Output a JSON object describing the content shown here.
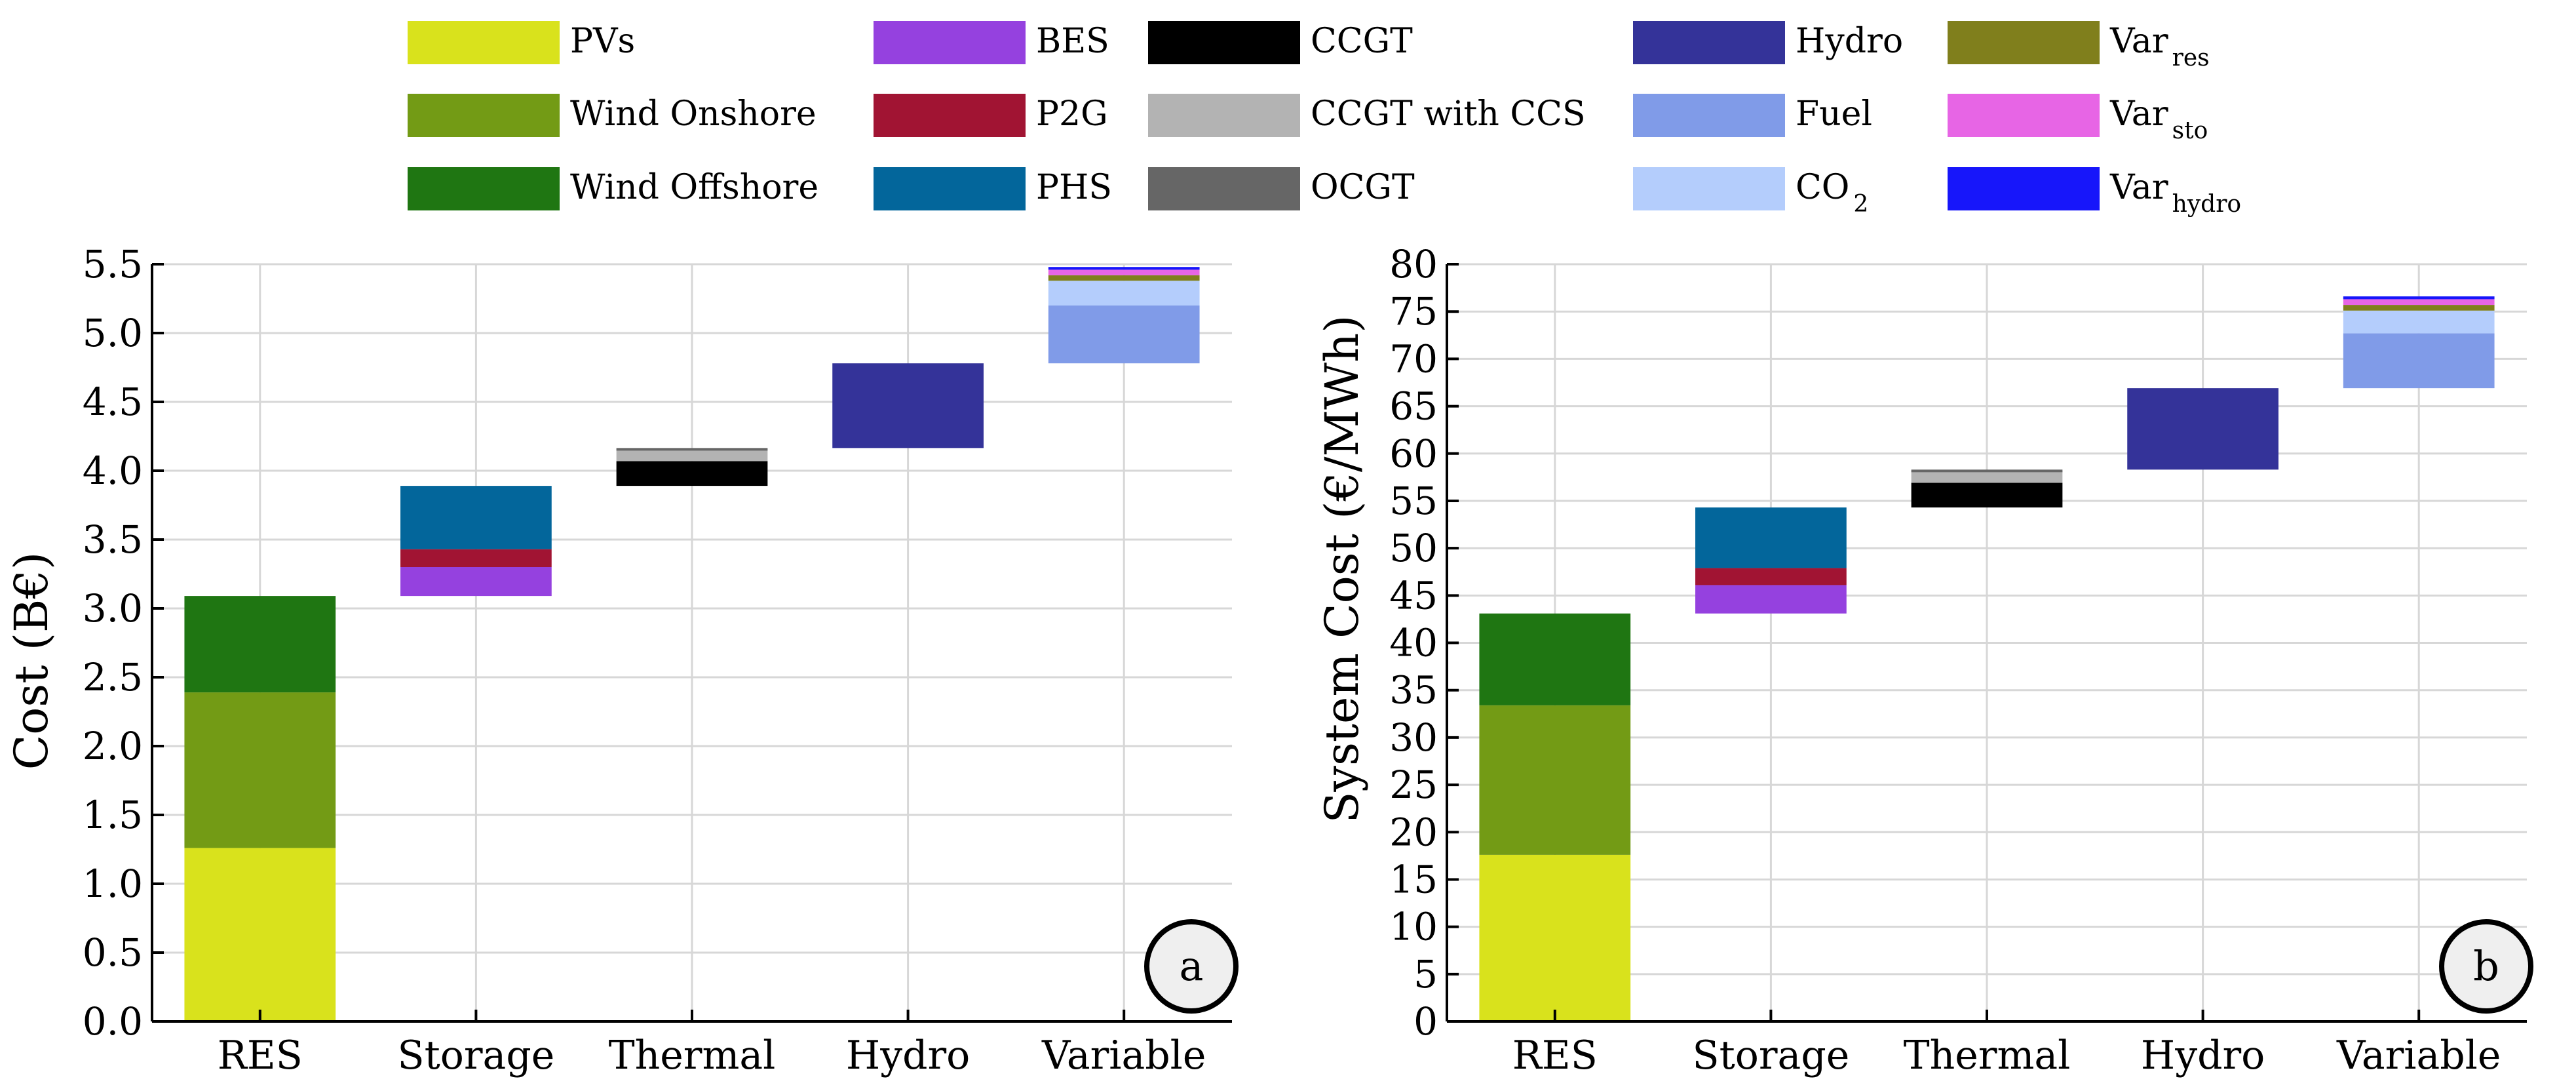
{
  "legend": [
    {
      "label": "PVs",
      "color": "#d9e21c"
    },
    {
      "label": "Wind Onshore",
      "color": "#739b15"
    },
    {
      "label": "Wind Offshore",
      "color": "#1f7612"
    },
    {
      "label": "BES",
      "color": "#9541df"
    },
    {
      "label": "P2G",
      "color": "#a11433"
    },
    {
      "label": "PHS",
      "color": "#03669b"
    },
    {
      "label": "CCGT",
      "color": "#000000"
    },
    {
      "label": "CCGT with CCS",
      "color": "#b3b3b3"
    },
    {
      "label": "OCGT",
      "color": "#666666"
    },
    {
      "label": "Hydro",
      "color": "#343399"
    },
    {
      "label": "Fuel",
      "color": "#809be8"
    },
    {
      "label": "CO",
      "sub": "2",
      "color": "#b4cdfc"
    },
    {
      "label": "Var",
      "sub": "res",
      "color": "#807f1c"
    },
    {
      "label": "Var",
      "sub": "sto",
      "color": "#e765e5"
    },
    {
      "label": "Var",
      "sub": "hydro",
      "color": "#1716fa"
    }
  ],
  "chart_data": [
    {
      "type": "bar",
      "subtype": "stacked-waterfall",
      "panel": "a",
      "title": "",
      "xlabel": "",
      "ylabel": "Cost (B€)",
      "ylim": [
        0,
        5.5
      ],
      "yticks": [
        "0.0",
        "0.5",
        "1.0",
        "1.5",
        "2.0",
        "2.5",
        "3.0",
        "3.5",
        "4.0",
        "4.5",
        "5.0",
        "5.5"
      ],
      "grid": true,
      "categories": [
        "RES",
        "Storage",
        "Thermal",
        "Hydro",
        "Variable"
      ],
      "stacks": [
        {
          "category": "RES",
          "segments": [
            {
              "name": "PVs",
              "from": 0,
              "to": 1.26
            },
            {
              "name": "Wind Onshore",
              "from": 1.26,
              "to": 2.39
            },
            {
              "name": "Wind Offshore",
              "from": 2.39,
              "to": 3.09
            }
          ]
        },
        {
          "category": "Storage",
          "segments": [
            {
              "name": "BES",
              "from": 3.09,
              "to": 3.3
            },
            {
              "name": "P2G",
              "from": 3.3,
              "to": 3.43
            },
            {
              "name": "PHS",
              "from": 3.43,
              "to": 3.89
            }
          ]
        },
        {
          "category": "Thermal",
          "segments": [
            {
              "name": "CCGT",
              "from": 3.89,
              "to": 4.07
            },
            {
              "name": "CCGT with CCS",
              "from": 4.07,
              "to": 4.16
            },
            {
              "name": "OCGT",
              "from": 4.16,
              "to": 4.165
            }
          ]
        },
        {
          "category": "Hydro",
          "segments": [
            {
              "name": "Hydro",
              "from": 4.165,
              "to": 4.78
            }
          ]
        },
        {
          "category": "Variable",
          "segments": [
            {
              "name": "Fuel",
              "from": 4.78,
              "to": 5.2
            },
            {
              "name": "CO2",
              "from": 5.2,
              "to": 5.38
            },
            {
              "name": "Var res",
              "from": 5.38,
              "to": 5.42
            },
            {
              "name": "Var sto",
              "from": 5.42,
              "to": 5.46
            },
            {
              "name": "Var hydro",
              "from": 5.46,
              "to": 5.48
            }
          ]
        }
      ]
    },
    {
      "type": "bar",
      "subtype": "stacked-waterfall",
      "panel": "b",
      "title": "",
      "xlabel": "",
      "ylabel": "System Cost (€/MWh)",
      "ylim": [
        0,
        80
      ],
      "yticks": [
        "0",
        "5",
        "10",
        "15",
        "20",
        "25",
        "30",
        "35",
        "40",
        "45",
        "50",
        "55",
        "60",
        "65",
        "70",
        "75",
        "80"
      ],
      "grid": true,
      "categories": [
        "RES",
        "Storage",
        "Thermal",
        "Hydro",
        "Variable"
      ],
      "stacks": [
        {
          "category": "RES",
          "segments": [
            {
              "name": "PVs",
              "from": 0,
              "to": 17.6
            },
            {
              "name": "Wind Onshore",
              "from": 17.6,
              "to": 33.4
            },
            {
              "name": "Wind Offshore",
              "from": 33.4,
              "to": 43.1
            }
          ]
        },
        {
          "category": "Storage",
          "segments": [
            {
              "name": "BES",
              "from": 43.1,
              "to": 46.1
            },
            {
              "name": "P2G",
              "from": 46.1,
              "to": 47.9
            },
            {
              "name": "PHS",
              "from": 47.9,
              "to": 54.3
            }
          ]
        },
        {
          "category": "Thermal",
          "segments": [
            {
              "name": "CCGT",
              "from": 54.3,
              "to": 56.9
            },
            {
              "name": "CCGT with CCS",
              "from": 56.9,
              "to": 58.2
            },
            {
              "name": "OCGT",
              "from": 58.2,
              "to": 58.3
            }
          ]
        },
        {
          "category": "Hydro",
          "segments": [
            {
              "name": "Hydro",
              "from": 58.3,
              "to": 66.9
            }
          ]
        },
        {
          "category": "Variable",
          "segments": [
            {
              "name": "Fuel",
              "from": 66.9,
              "to": 72.7
            },
            {
              "name": "CO2",
              "from": 72.7,
              "to": 75.1
            },
            {
              "name": "Var res",
              "from": 75.1,
              "to": 75.7
            },
            {
              "name": "Var sto",
              "from": 75.7,
              "to": 76.3
            },
            {
              "name": "Var hydro",
              "from": 76.3,
              "to": 76.6
            }
          ]
        }
      ]
    }
  ]
}
